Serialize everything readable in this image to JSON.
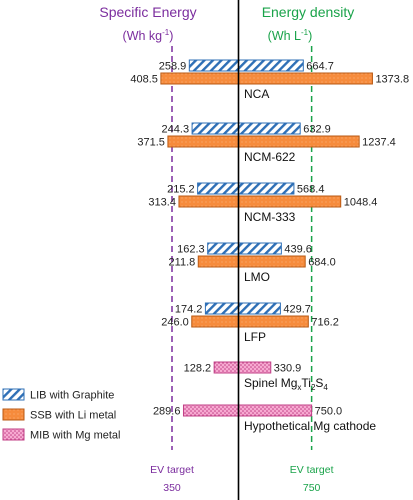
{
  "chart_data": {
    "type": "bar",
    "orientation": "horizontal-diverging",
    "left_header": {
      "title": "Specific Energy",
      "unit_prefix": "(Wh kg",
      "unit_sup": "-1",
      "unit_suffix": ")",
      "color": "#7b2d9e"
    },
    "right_header": {
      "title": "Energy density",
      "unit_prefix": "(Wh L",
      "unit_sup": "-1",
      "unit_suffix": ")",
      "color": "#1aa34a"
    },
    "categories": [
      {
        "label": "NCA",
        "rows": [
          {
            "series": "LIB with Graphite",
            "left": "258.9",
            "right": "664.7"
          },
          {
            "series": "SSB with Li metal",
            "left": "408.5",
            "right": "1373.8"
          }
        ]
      },
      {
        "label": "NCM-622",
        "rows": [
          {
            "series": "LIB with Graphite",
            "left": "244.3",
            "right": "632.9"
          },
          {
            "series": "SSB with Li metal",
            "left": "371.5",
            "right": "1237.4"
          }
        ]
      },
      {
        "label": "NCM-333",
        "rows": [
          {
            "series": "LIB with Graphite",
            "left": "215.2",
            "right": "568.4"
          },
          {
            "series": "SSB with Li metal",
            "left": "313.4",
            "right": "1048.4"
          }
        ]
      },
      {
        "label": "LMO",
        "rows": [
          {
            "series": "LIB with Graphite",
            "left": "162.3",
            "right": "439.6"
          },
          {
            "series": "SSB with Li metal",
            "left": "211.8",
            "right": "684.0"
          }
        ]
      },
      {
        "label": "LFP",
        "rows": [
          {
            "series": "LIB with Graphite",
            "left": "174.2",
            "right": "429.7"
          },
          {
            "series": "SSB with Li metal",
            "left": "246.0",
            "right": "716.2"
          }
        ]
      },
      {
        "label": "Spinel MgxTi2S4",
        "label_parts": [
          "Spinel Mg",
          "x",
          "Ti",
          "2",
          "S",
          "4"
        ],
        "rows": [
          {
            "series": "MIB with Mg metal",
            "left": "128.2",
            "right": "330.9"
          }
        ]
      },
      {
        "label": "Hypothetical Mg cathode",
        "rows": [
          {
            "series": "MIB with Mg metal",
            "left": "289.6",
            "right": "750.0"
          }
        ]
      }
    ],
    "series": [
      {
        "name": "LIB with Graphite",
        "fill": "hatch",
        "color": "#2e6fb6",
        "bg": "#ffffff"
      },
      {
        "name": "SSB with Li metal",
        "fill": "solid",
        "color": "#f68b3c",
        "edge": "#b85a14"
      },
      {
        "name": "MIB with Mg metal",
        "fill": "dots",
        "color": "#f48cc1",
        "edge": "#c03f86"
      }
    ],
    "legend_position": "bottom-left",
    "targets": [
      {
        "label_line1": "EV target",
        "label_line2": "350",
        "value": 350,
        "side": "left",
        "color": "#7b2d9e"
      },
      {
        "label_line1": "EV target",
        "label_line2": "750",
        "value": 750,
        "side": "right",
        "color": "#1aa34a"
      }
    ],
    "left_scale": {
      "min": 0,
      "max": 450
    },
    "right_scale": {
      "min": 0,
      "max": 1500
    }
  }
}
